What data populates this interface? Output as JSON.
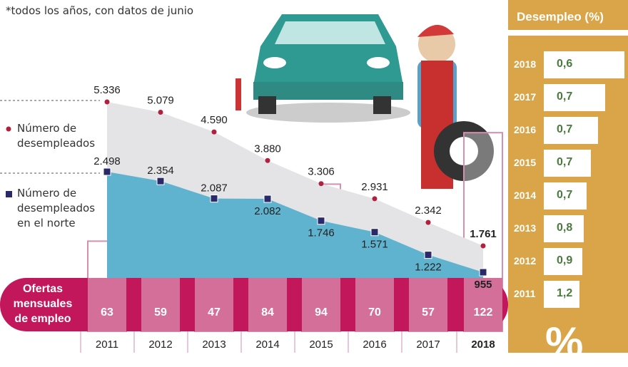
{
  "note": "*todos los años, con datos de junio",
  "legend": {
    "unemployed": "Número de desempleados",
    "north": "Número de desempleados en el norte"
  },
  "chart_data": {
    "type": "area",
    "categories": [
      "2011",
      "2012",
      "2013",
      "2014",
      "2015",
      "2016",
      "2017",
      "2018"
    ],
    "series": [
      {
        "name": "Número de desempleados",
        "values": [
          5336,
          5079,
          4590,
          3880,
          3306,
          2931,
          2342,
          1761
        ],
        "labels": [
          "5.336",
          "5.079",
          "4.590",
          "3.880",
          "3.306",
          "2.931",
          "2.342",
          "1.761"
        ],
        "color": "#b0213f"
      },
      {
        "name": "Número de desempleados en el norte",
        "values": [
          2498,
          2354,
          2087,
          2082,
          1746,
          1571,
          1222,
          955
        ],
        "labels": [
          "2.498",
          "2.354",
          "2.087",
          "2.082",
          "1.746",
          "1.571",
          "1.222",
          "955"
        ],
        "color": "#2a2a6a"
      },
      {
        "name": "Ofertas mensuales de empleo",
        "values": [
          63,
          59,
          47,
          84,
          94,
          70,
          57,
          122
        ],
        "color": "#c2185b"
      }
    ],
    "offers_label": [
      "Ofertas",
      "mensuales",
      "de empleo"
    ]
  },
  "side": {
    "title": "Desempleo (%)",
    "rows": [
      {
        "year": "2018",
        "value": "0,6"
      },
      {
        "year": "2017",
        "value": "0,7"
      },
      {
        "year": "2016",
        "value": "0,7"
      },
      {
        "year": "2015",
        "value": "0,7"
      },
      {
        "year": "2014",
        "value": "0,7"
      },
      {
        "year": "2013",
        "value": "0,8"
      },
      {
        "year": "2012",
        "value": "0,9"
      },
      {
        "year": "2011",
        "value": "1,2"
      }
    ],
    "symbol": "%"
  }
}
